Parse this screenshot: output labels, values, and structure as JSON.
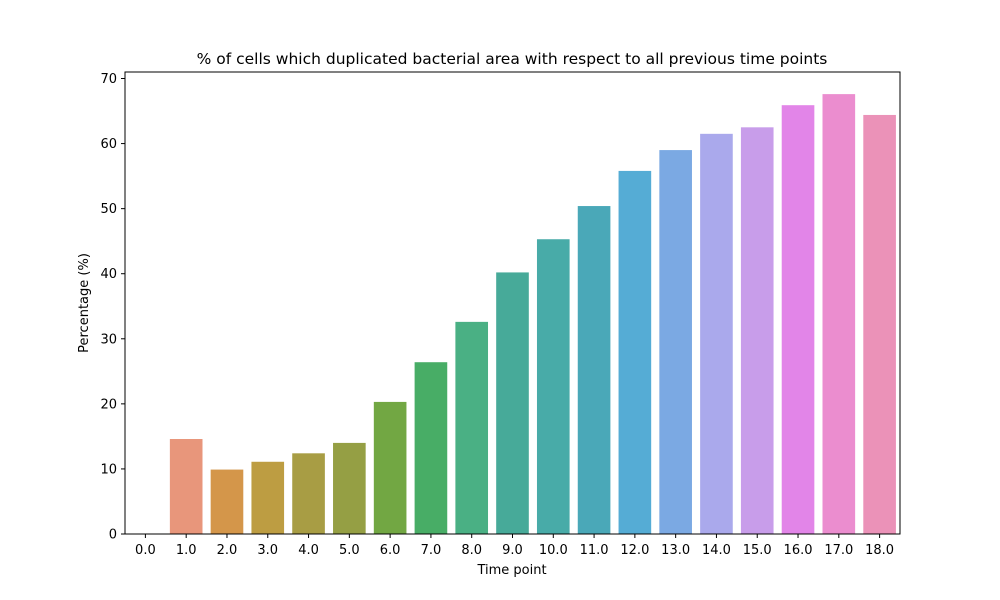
{
  "chart_data": {
    "type": "bar",
    "title": "% of cells which duplicated bacterial area with respect to all previous time points",
    "xlabel": "Time point",
    "ylabel": "Percentage (%)",
    "categories": [
      "0.0",
      "1.0",
      "2.0",
      "3.0",
      "4.0",
      "5.0",
      "6.0",
      "7.0",
      "8.0",
      "9.0",
      "10.0",
      "11.0",
      "12.0",
      "13.0",
      "14.0",
      "15.0",
      "16.0",
      "17.0",
      "18.0"
    ],
    "values": [
      0,
      14.6,
      9.9,
      11.1,
      12.4,
      14.0,
      20.3,
      26.4,
      32.6,
      40.2,
      45.3,
      50.4,
      55.8,
      59.0,
      61.5,
      62.5,
      65.9,
      67.6,
      64.4
    ],
    "colors": [
      "#f7766c",
      "#e8967b",
      "#d4964a",
      "#bd9d42",
      "#a89d44",
      "#959f44",
      "#72a743",
      "#48ad66",
      "#4ab084",
      "#47aa99",
      "#48aba8",
      "#4aa8b8",
      "#55acd5",
      "#7ba9e3",
      "#aaa9ec",
      "#c89dea",
      "#e285e8",
      "#eb8dcf",
      "#eb92b8"
    ],
    "ylim": [
      0,
      71
    ],
    "yticks": [
      0,
      10,
      20,
      30,
      40,
      50,
      60,
      70
    ],
    "grid": false,
    "legend": "none"
  }
}
